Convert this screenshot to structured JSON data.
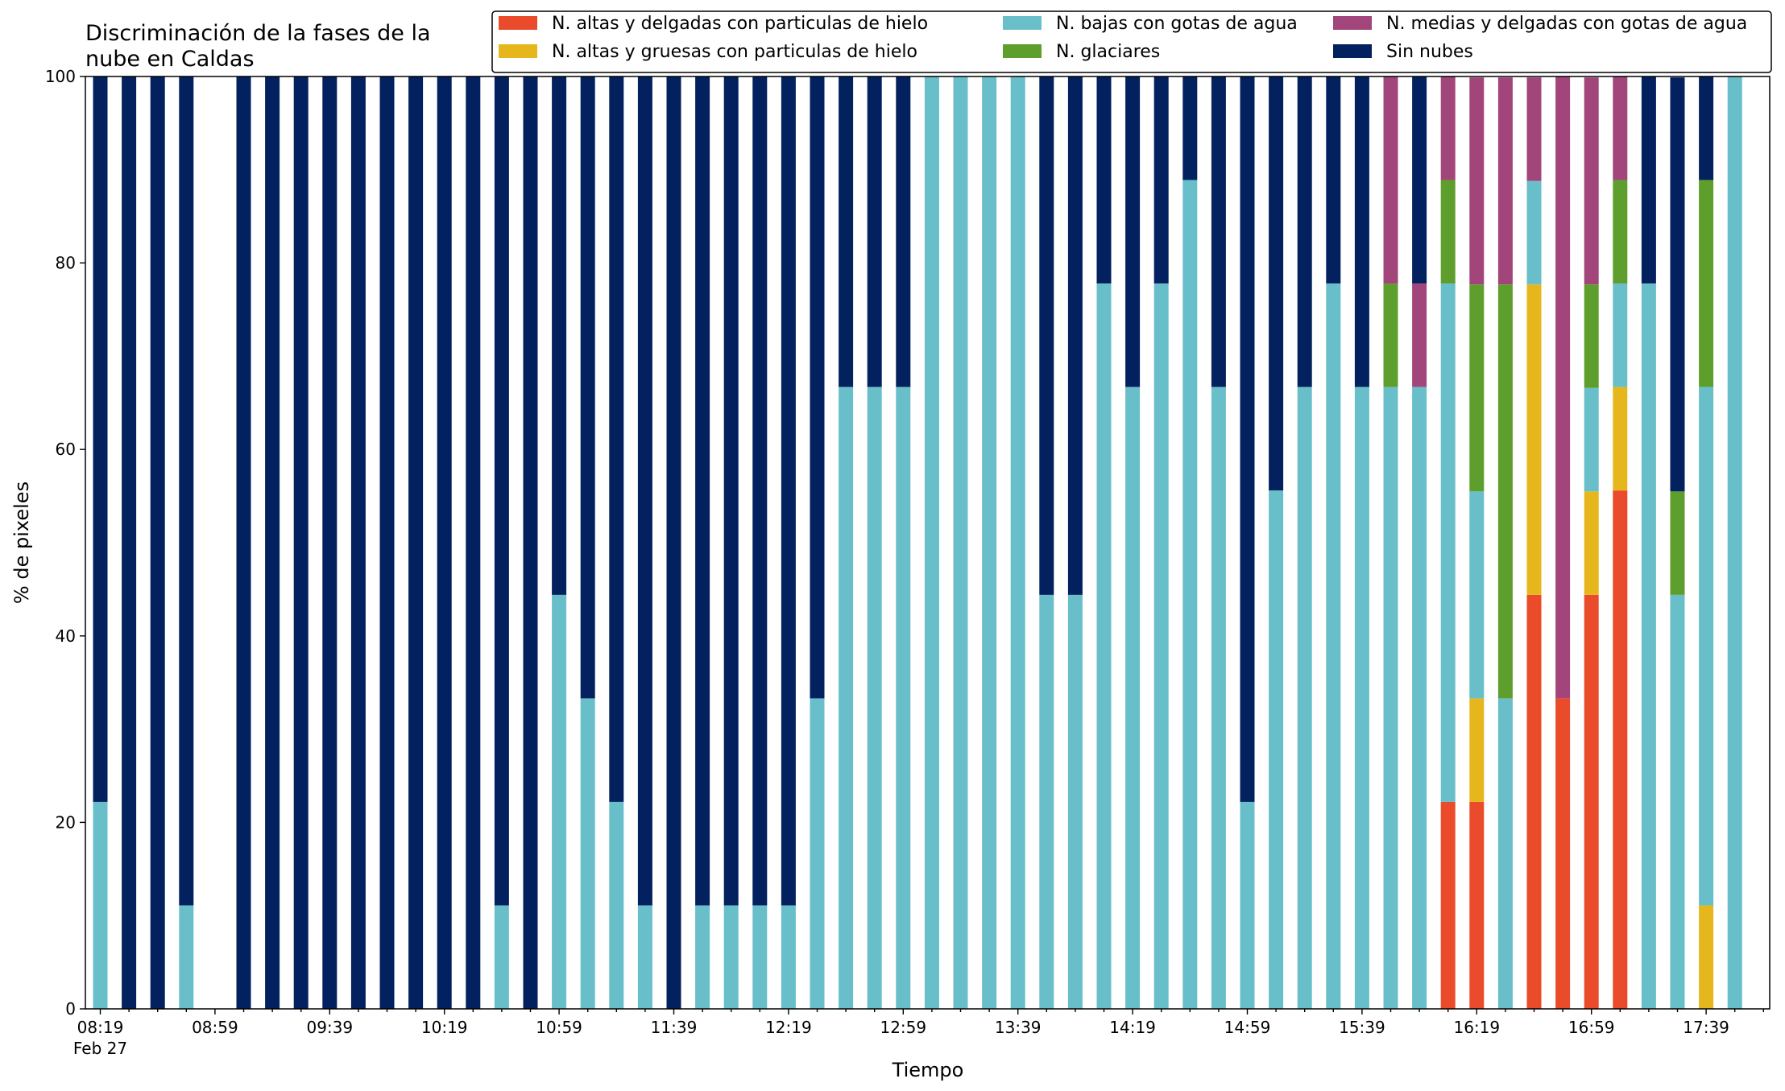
{
  "chart_data": {
    "type": "bar",
    "stacked": true,
    "title": "Discriminación de la fases de la\nnube en Caldas",
    "xlabel": "Tiempo",
    "ylabel": "% de pixeles",
    "ylim": [
      0,
      100
    ],
    "yticks": [
      0,
      20,
      40,
      60,
      80,
      100
    ],
    "grid": false,
    "legend_position": "top-right",
    "legend_columns": 3,
    "x_tick_labels": [
      {
        "index": 0,
        "label": "08:19",
        "sublabel": "Feb 27"
      },
      {
        "index": 4,
        "label": "08:59"
      },
      {
        "index": 8,
        "label": "09:39"
      },
      {
        "index": 12,
        "label": "10:19"
      },
      {
        "index": 16,
        "label": "10:59"
      },
      {
        "index": 20,
        "label": "11:39"
      },
      {
        "index": 24,
        "label": "12:19"
      },
      {
        "index": 28,
        "label": "12:59"
      },
      {
        "index": 32,
        "label": "13:39"
      },
      {
        "index": 36,
        "label": "14:19"
      },
      {
        "index": 40,
        "label": "14:59"
      },
      {
        "index": 44,
        "label": "15:39"
      },
      {
        "index": 48,
        "label": "16:19"
      },
      {
        "index": 52,
        "label": "16:59"
      },
      {
        "index": 56,
        "label": "17:39"
      }
    ],
    "x": [
      "08:19",
      "08:29",
      "08:39",
      "08:49",
      "08:59",
      "09:09",
      "09:19",
      "09:29",
      "09:39",
      "09:49",
      "09:59",
      "10:09",
      "10:19",
      "10:29",
      "10:39",
      "10:49",
      "10:59",
      "11:09",
      "11:19",
      "11:29",
      "11:39",
      "11:49",
      "11:59",
      "12:09",
      "12:19",
      "12:29",
      "12:39",
      "12:49",
      "12:59",
      "13:09",
      "13:19",
      "13:29",
      "13:39",
      "13:49",
      "13:59",
      "14:09",
      "14:19",
      "14:29",
      "14:39",
      "14:49",
      "14:59",
      "15:09",
      "15:19",
      "15:29",
      "15:39",
      "15:49",
      "15:59",
      "16:09",
      "16:19",
      "16:29",
      "16:39",
      "16:49",
      "16:59",
      "17:09",
      "17:19",
      "17:29",
      "17:39",
      "17:49"
    ],
    "series": [
      {
        "name": "N. altas y delgadas con particulas de hielo",
        "color": "#ea4b2a",
        "values": [
          0,
          0,
          0,
          0,
          0,
          0,
          0,
          0,
          0,
          0,
          0,
          0,
          0,
          0,
          0,
          0,
          0,
          0,
          0,
          0,
          0,
          0,
          0,
          0,
          0,
          0,
          0,
          0,
          0,
          0,
          0,
          0,
          0,
          0,
          0,
          0,
          0,
          0,
          0,
          0,
          0,
          0,
          0,
          0,
          0,
          0,
          0,
          22.2,
          22.2,
          0,
          44.4,
          33.3,
          44.4,
          55.6,
          0,
          0,
          0,
          0
        ]
      },
      {
        "name": "N. altas y gruesas con particulas de hielo",
        "color": "#e6b71c",
        "values": [
          0,
          0,
          0,
          0,
          0,
          0,
          0,
          0,
          0,
          0,
          0,
          0,
          0,
          0,
          0,
          0,
          0,
          0,
          0,
          0,
          0,
          0,
          0,
          0,
          0,
          0,
          0,
          0,
          0,
          0,
          0,
          0,
          0,
          0,
          0,
          0,
          0,
          0,
          0,
          0,
          0,
          0,
          0,
          0,
          0,
          0,
          0,
          0,
          11.1,
          0,
          33.3,
          0,
          11.1,
          11.1,
          0,
          0,
          11.1,
          0
        ]
      },
      {
        "name": "N. bajas con gotas de agua",
        "color": "#68bfca",
        "values": [
          22.2,
          0,
          0,
          11.1,
          0,
          0,
          0,
          0,
          0,
          0,
          0,
          0,
          0,
          0,
          11.1,
          0,
          44.4,
          33.3,
          22.2,
          11.1,
          0,
          11.1,
          11.1,
          11.1,
          11.1,
          33.3,
          66.7,
          66.7,
          66.7,
          100,
          100,
          100,
          100,
          44.4,
          44.4,
          77.8,
          66.7,
          77.8,
          88.9,
          66.7,
          22.2,
          55.6,
          66.7,
          77.8,
          66.7,
          66.7,
          66.7,
          55.6,
          22.2,
          33.3,
          11.1,
          0,
          11.1,
          11.1,
          77.8,
          44.4,
          55.6,
          100
        ]
      },
      {
        "name": "N. glaciares",
        "color": "#5e9e2c",
        "values": [
          0,
          0,
          0,
          0,
          0,
          0,
          0,
          0,
          0,
          0,
          0,
          0,
          0,
          0,
          0,
          0,
          0,
          0,
          0,
          0,
          0,
          0,
          0,
          0,
          0,
          0,
          0,
          0,
          0,
          0,
          0,
          0,
          0,
          0,
          0,
          0,
          0,
          0,
          0,
          0,
          0,
          0,
          0,
          0,
          0,
          11.1,
          0,
          11.1,
          22.2,
          44.4,
          0,
          0,
          11.1,
          11.1,
          0,
          11.1,
          22.2,
          0
        ]
      },
      {
        "name": "N. medias y delgadas con gotas de agua",
        "color": "#a2457b",
        "values": [
          0,
          0,
          0,
          0,
          0,
          0,
          0,
          0,
          0,
          0,
          0,
          0,
          0,
          0,
          0,
          0,
          0,
          0,
          0,
          0,
          0,
          0,
          0,
          0,
          0,
          0,
          0,
          0,
          0,
          0,
          0,
          0,
          0,
          0,
          0,
          0,
          0,
          0,
          0,
          0,
          0,
          0,
          0,
          0,
          0,
          22.2,
          11.1,
          11.1,
          22.2,
          22.2,
          11.1,
          66.7,
          22.2,
          11.1,
          0,
          0,
          0,
          0
        ]
      },
      {
        "name": "Sin nubes",
        "color": "#03205f",
        "values": [
          77.8,
          100,
          100,
          88.9,
          0,
          100,
          100,
          100,
          100,
          100,
          100,
          100,
          100,
          100,
          88.9,
          100,
          55.6,
          66.7,
          77.8,
          88.9,
          100,
          88.9,
          88.9,
          88.9,
          88.9,
          66.7,
          33.3,
          33.3,
          33.3,
          0,
          0,
          0,
          0,
          55.6,
          55.6,
          22.2,
          33.3,
          22.2,
          11.1,
          33.3,
          77.8,
          44.4,
          33.3,
          22.2,
          33.3,
          0,
          22.2,
          0,
          0,
          0,
          0,
          0,
          0,
          0,
          22.2,
          44.4,
          11.1,
          0
        ]
      }
    ]
  }
}
